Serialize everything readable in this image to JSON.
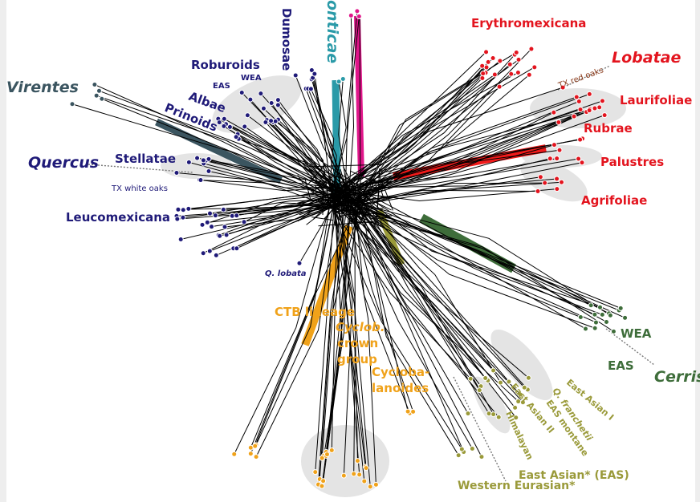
{
  "labels": [
    "Virentes",
    "Quercus",
    "Dumosae",
    "onticae",
    "Roburoids",
    "WEA",
    "EAS",
    "Albae",
    "Prinoids",
    "Stellatae",
    "TX white oaks",
    "Leucomexicana",
    "Q. lobata",
    "Erythromexicana",
    "Lobatae",
    "TX red oaks",
    "Laurifoliae",
    "Rubrae",
    "Palustres",
    "Agrifoliae",
    "WEA",
    "EAS",
    "Cerris",
    "East Asian I",
    "Q. franchetii",
    "EAS montane",
    "East Asian II",
    "Himalayan",
    "East Asian* (EAS)",
    "Western Eurasian*",
    "CTB lineage",
    "Cyclob.",
    "crown",
    "group",
    "Cycloba-",
    "lanoides"
  ]
}
